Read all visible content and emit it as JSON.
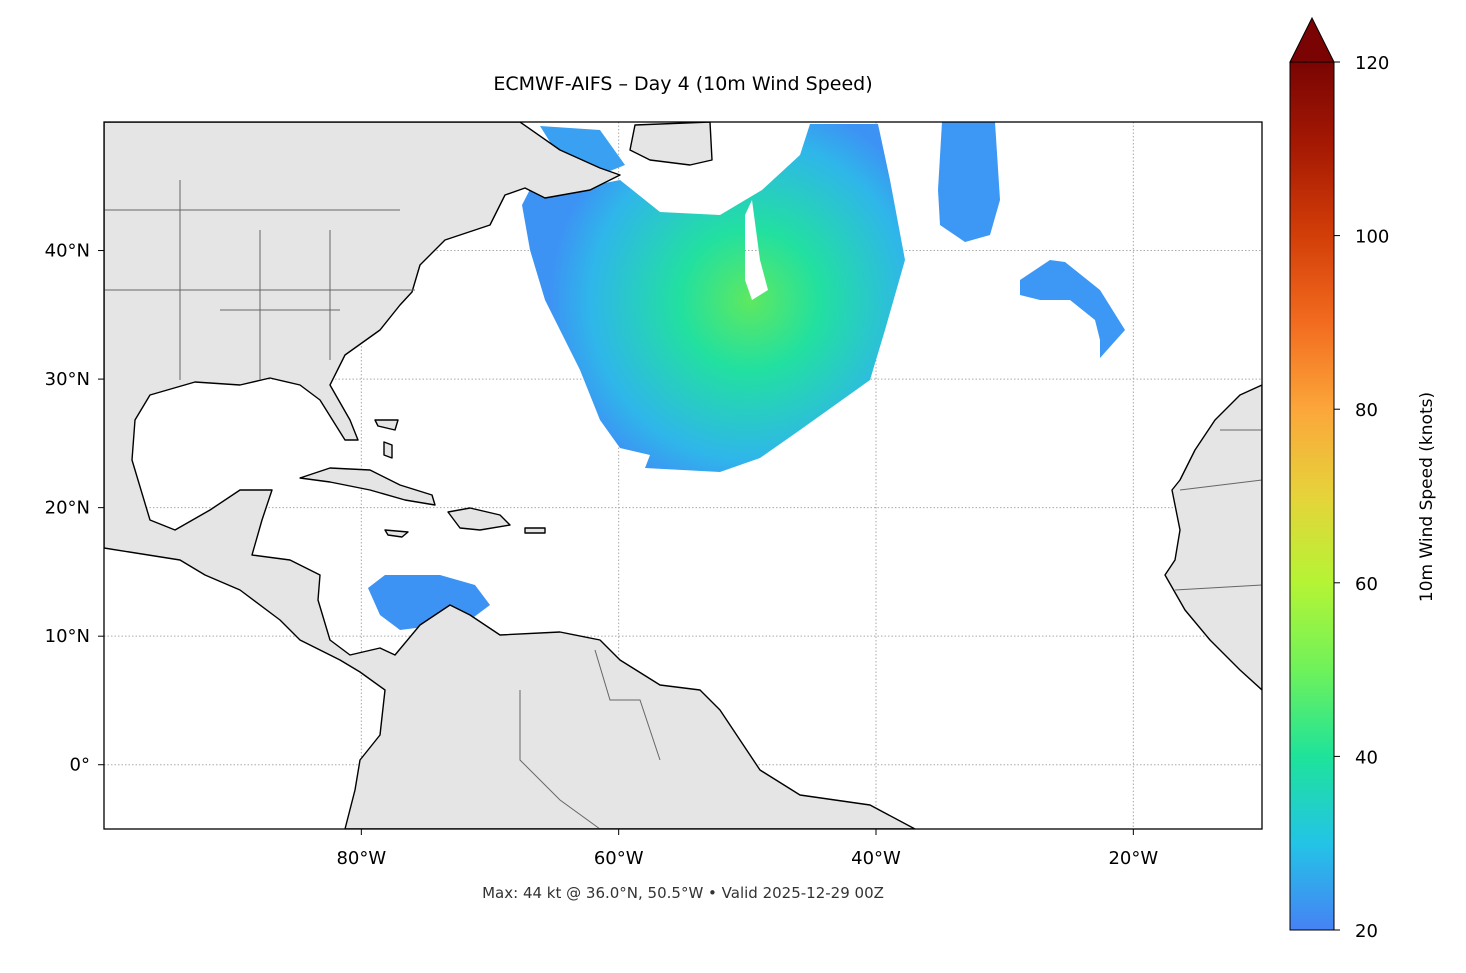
{
  "chart_data": {
    "type": "map",
    "title": "ECMWF-AIFS – Day 4 (10m Wind Speed)",
    "annotation": "Max: 44 kt @ 36.0°N, 50.5°W • Valid 2025-12-29 00Z",
    "xlim": [
      -100,
      -10
    ],
    "ylim": [
      -5,
      50
    ],
    "xticks": [
      {
        "value": -80,
        "label": "80°W"
      },
      {
        "value": -60,
        "label": "60°W"
      },
      {
        "value": -40,
        "label": "40°W"
      },
      {
        "value": -20,
        "label": "20°W"
      }
    ],
    "yticks": [
      {
        "value": 0,
        "label": "0°"
      },
      {
        "value": 10,
        "label": "10°N"
      },
      {
        "value": 20,
        "label": "20°N"
      },
      {
        "value": 30,
        "label": "30°N"
      },
      {
        "value": 40,
        "label": "40°N"
      }
    ],
    "grid": true,
    "colorbar": {
      "label": "10m Wind Speed (knots)",
      "lim": [
        20,
        120
      ],
      "ticks": [
        20,
        40,
        60,
        80,
        100,
        120
      ],
      "extend": "max",
      "colors": [
        "#4682f5",
        "#23c4e6",
        "#1ee39a",
        "#6ff25a",
        "#b5f435",
        "#e6d33a",
        "#fca63a",
        "#f26b1f",
        "#d33e08",
        "#a71a03",
        "#7a0403"
      ]
    }
  }
}
